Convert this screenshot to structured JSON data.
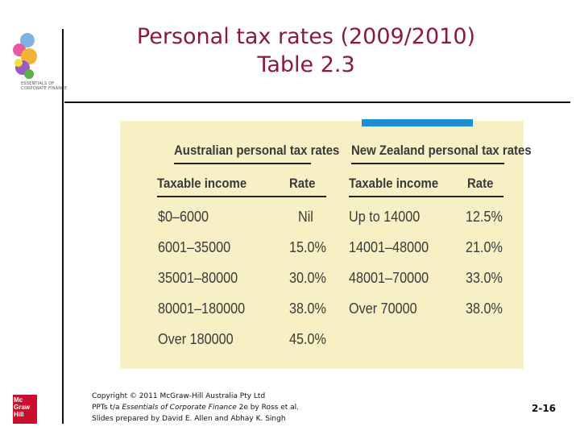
{
  "header": {
    "logo_text_line1": "ESSENTIALS OF",
    "logo_text_line2": "CORPORATE FINANCE",
    "title_line1": "Personal tax rates (2009/2010)",
    "title_line2": "Table 2.3"
  },
  "table": {
    "australia_heading": "Australian personal tax rates",
    "nz_heading": "New Zealand personal tax rates",
    "col_income": "Taxable income",
    "col_rate": "Rate",
    "australia_rows": [
      {
        "income": "$0–6000",
        "rate": "Nil"
      },
      {
        "income": "6001–35000",
        "rate": "15.0%"
      },
      {
        "income": "35001–80000",
        "rate": "30.0%"
      },
      {
        "income": "80001–180000",
        "rate": "38.0%"
      },
      {
        "income": "Over 180000",
        "rate": "45.0%"
      }
    ],
    "nz_rows": [
      {
        "income": "Up to 14000",
        "rate": "12.5%"
      },
      {
        "income": "14001–48000",
        "rate": "21.0%"
      },
      {
        "income": "48001–70000",
        "rate": "33.0%"
      },
      {
        "income": "Over 70000",
        "rate": "38.0%"
      }
    ]
  },
  "footer": {
    "copyright": "Copyright © 2011 McGraw-Hill Australia Pty Ltd",
    "ppts_prefix": "PPTs t/a ",
    "book_title": "Essentials of Corporate Finance",
    "ppts_suffix": " 2e by Ross et al.",
    "prepared_by": "Slides prepared by David E. Allen and Abhay K. Singh",
    "page_number": "2-16",
    "publisher_logo": {
      "line1": "Mc",
      "line2": "Graw",
      "line3": "Hill"
    }
  },
  "colors": {
    "title": "#8b1a3a",
    "panel": "#f6f0c4",
    "accent_tab": "#1f8fd1",
    "publisher_logo": "#c8102e"
  }
}
